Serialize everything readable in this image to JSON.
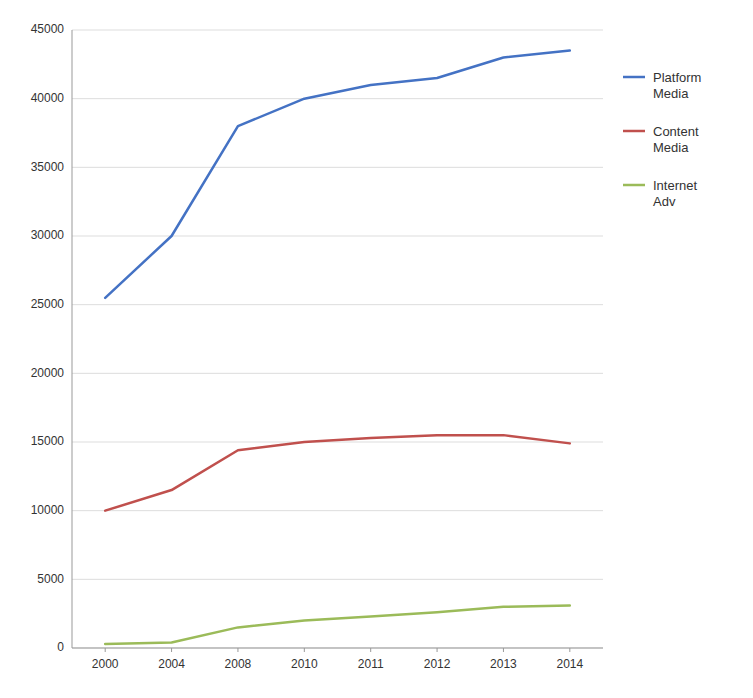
{
  "chart_data": {
    "type": "line",
    "categories": [
      "2000",
      "2004",
      "2008",
      "2010",
      "2011",
      "2012",
      "2013",
      "2014"
    ],
    "series": [
      {
        "name": "Platform\nMedia",
        "color": "#4472C4",
        "values": [
          25500,
          30000,
          38000,
          40000,
          41000,
          41500,
          43000,
          43500
        ]
      },
      {
        "name": "Content\nMedia",
        "color": "#C0504D",
        "values": [
          10000,
          11500,
          14400,
          15000,
          15300,
          15500,
          15500,
          14900
        ]
      },
      {
        "name": "Internet\nAdv",
        "color": "#9BBB59",
        "values": [
          300,
          400,
          1500,
          2000,
          2300,
          2600,
          3000,
          3100
        ]
      }
    ],
    "ylim": [
      0,
      45000
    ],
    "yticks": [
      0,
      5000,
      10000,
      15000,
      20000,
      25000,
      30000,
      35000,
      40000,
      45000
    ],
    "grid": true,
    "legend": "right"
  }
}
